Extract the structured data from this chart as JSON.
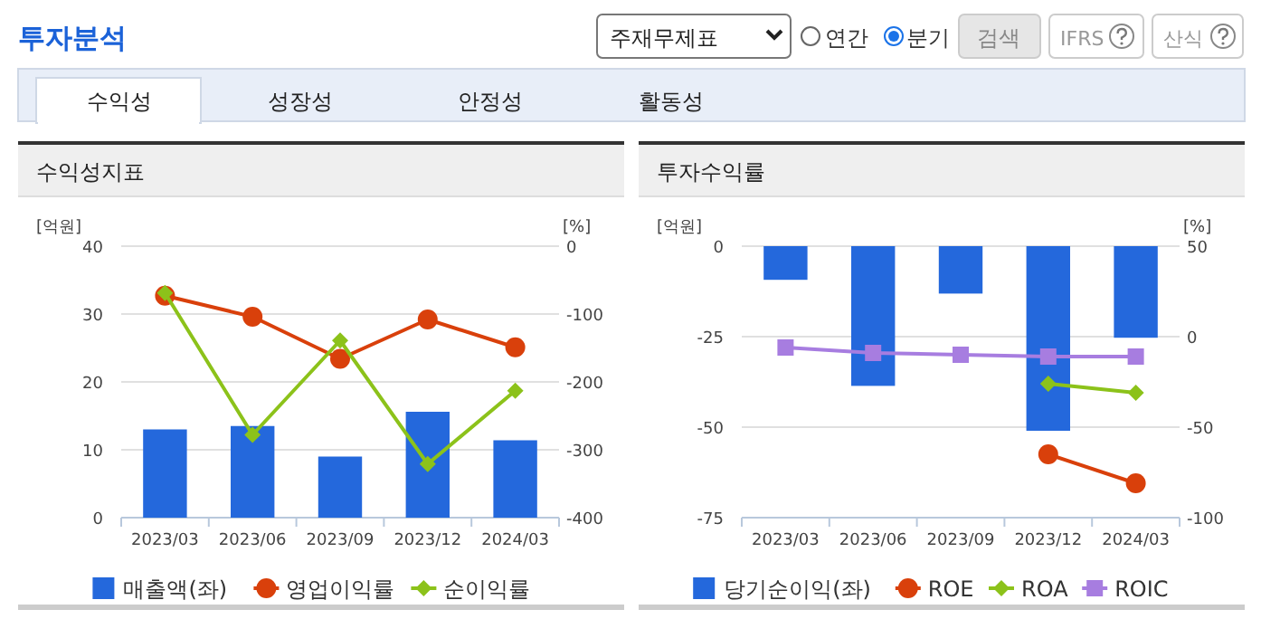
{
  "chart_data": [
    {
      "type": "other",
      "title": "투자분석",
      "annotations": [
        "주재무제표",
        "연간",
        "분기",
        "검색",
        "IFRS",
        "산식",
        "수익성",
        "성장성",
        "안정성",
        "활동성"
      ]
    },
    {
      "type": "bar",
      "title": "수익성지표",
      "ylabel": "[억원]",
      "y2label": "[%]",
      "categories": [
        "2023/03",
        "2023/06",
        "2023/09",
        "2023/12",
        "2024/03"
      ],
      "ylim": [
        0,
        40
      ],
      "yticks": [
        0,
        10,
        20,
        30,
        40
      ],
      "y2lim": [
        -400,
        0
      ],
      "y2ticks": [
        -400,
        -300,
        -200,
        -100,
        0
      ],
      "grid": "y",
      "legend": "bottom",
      "series": [
        {
          "name": "매출액(좌)",
          "type": "bar",
          "color": "#2468dc",
          "values": [
            13.0,
            13.5,
            9.0,
            15.6,
            11.4
          ]
        },
        {
          "name": "영업이익률",
          "type": "line",
          "axis": "y2",
          "marker": "circle",
          "color": "#d9400b",
          "values": [
            -73,
            -104,
            -166,
            -108,
            -149
          ]
        },
        {
          "name": "순이익률",
          "type": "line",
          "axis": "y2",
          "marker": "diamond",
          "color": "#8cc21a",
          "values": [
            -69,
            -278,
            -139,
            -321,
            -213
          ]
        }
      ]
    },
    {
      "type": "bar",
      "title": "투자수익률",
      "ylabel": "[억원]",
      "y2label": "[%]",
      "categories": [
        "2023/03",
        "2023/06",
        "2023/09",
        "2023/12",
        "2024/03"
      ],
      "ylim": [
        -75,
        0
      ],
      "yticks": [
        -75,
        -50,
        -25,
        0
      ],
      "y2lim": [
        -100,
        50
      ],
      "y2ticks": [
        -100,
        -50,
        0,
        50
      ],
      "grid": "y",
      "legend": "bottom",
      "series": [
        {
          "name": "당기순이익(좌)",
          "type": "bar",
          "color": "#2468dc",
          "values": [
            -9.3,
            -38.6,
            -13.1,
            -51.0,
            -25.3
          ]
        },
        {
          "name": "ROE",
          "type": "line",
          "axis": "y2",
          "marker": "circle",
          "color": "#d9400b",
          "values": [
            null,
            null,
            null,
            -65,
            -81
          ]
        },
        {
          "name": "ROA",
          "type": "line",
          "axis": "y2",
          "marker": "diamond",
          "color": "#8cc21a",
          "values": [
            null,
            null,
            null,
            -26,
            -31
          ]
        },
        {
          "name": "ROIC",
          "type": "line",
          "axis": "y2",
          "marker": "square",
          "color": "#a77de0",
          "values": [
            -6,
            -9,
            -10,
            -11,
            -11
          ]
        }
      ]
    }
  ]
}
